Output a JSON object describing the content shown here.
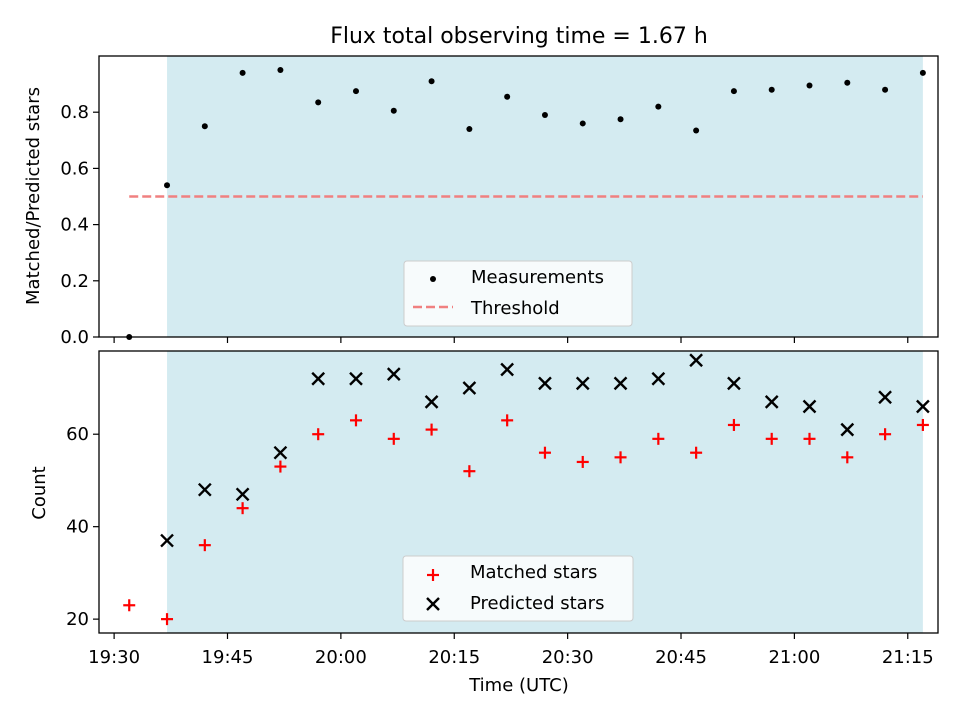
{
  "figure": {
    "title": "Flux total observing time = 1.67 h"
  },
  "chart_data": [
    {
      "type": "scatter",
      "title": "Flux total observing time = 1.67 h",
      "xlabel": "",
      "ylabel": "Matched/Predicted stars",
      "x_scale": "time",
      "xlim": [
        "19:28",
        "21:19"
      ],
      "ylim": [
        0,
        1.0
      ],
      "yticks": [
        0.0,
        0.2,
        0.4,
        0.6,
        0.8
      ],
      "ytick_labels": [
        "0.0",
        "0.2",
        "0.4",
        "0.6",
        "0.8"
      ],
      "xticks": [
        "19:30",
        "19:45",
        "20:00",
        "20:15",
        "20:30",
        "20:45",
        "21:00",
        "21:15"
      ],
      "shaded_region": {
        "x": [
          "19:37",
          "21:17"
        ],
        "color": "#d4ebf1"
      },
      "legend": {
        "position": "bottom-center",
        "entries": [
          "Measurements",
          "Threshold"
        ]
      },
      "series": [
        {
          "name": "Measurements",
          "marker": "dot",
          "color": "#000000",
          "x": [
            "19:32",
            "19:37",
            "19:42",
            "19:47",
            "19:52",
            "19:57",
            "20:02",
            "20:07",
            "20:12",
            "20:17",
            "20:22",
            "20:27",
            "20:32",
            "20:37",
            "20:42",
            "20:47",
            "20:52",
            "20:57",
            "21:02",
            "21:07",
            "21:12",
            "21:17"
          ],
          "y": [
            0.0,
            0.54,
            0.75,
            0.94,
            0.95,
            0.835,
            0.875,
            0.805,
            0.91,
            0.74,
            0.855,
            0.79,
            0.76,
            0.775,
            0.82,
            0.735,
            0.875,
            0.88,
            0.895,
            0.905,
            0.88,
            0.94
          ]
        },
        {
          "name": "Threshold",
          "style": "dashed-line",
          "color": "#f08080",
          "x": [
            "19:32",
            "21:17"
          ],
          "y": [
            0.5,
            0.5
          ]
        }
      ]
    },
    {
      "type": "scatter",
      "title": "",
      "xlabel": "Time (UTC)",
      "ylabel": "Count",
      "x_scale": "time",
      "xlim": [
        "19:28",
        "21:19"
      ],
      "ylim": [
        17,
        78
      ],
      "yticks": [
        20,
        40,
        60
      ],
      "ytick_labels": [
        "20",
        "40",
        "60"
      ],
      "xticks": [
        "19:30",
        "19:45",
        "20:00",
        "20:15",
        "20:30",
        "20:45",
        "21:00",
        "21:15"
      ],
      "xtick_labels": [
        "19:30",
        "19:45",
        "20:00",
        "20:15",
        "20:30",
        "20:45",
        "21:00",
        "21:15"
      ],
      "shaded_region": {
        "x": [
          "19:37",
          "21:17"
        ],
        "color": "#d4ebf1"
      },
      "legend": {
        "position": "bottom-center",
        "entries": [
          "Matched stars",
          "Predicted stars"
        ]
      },
      "series": [
        {
          "name": "Matched stars",
          "marker": "plus",
          "color": "#ff0000",
          "x": [
            "19:32",
            "19:37",
            "19:42",
            "19:47",
            "19:52",
            "19:57",
            "20:02",
            "20:07",
            "20:12",
            "20:17",
            "20:22",
            "20:27",
            "20:32",
            "20:37",
            "20:42",
            "20:47",
            "20:52",
            "20:57",
            "21:02",
            "21:07",
            "21:12",
            "21:17"
          ],
          "y": [
            23,
            20,
            36,
            44,
            53,
            60,
            63,
            59,
            61,
            52,
            63,
            56,
            54,
            55,
            59,
            56,
            62,
            59,
            59,
            55,
            60,
            62
          ]
        },
        {
          "name": "Predicted stars",
          "marker": "x",
          "color": "#000000",
          "x": [
            "19:37",
            "19:42",
            "19:47",
            "19:52",
            "19:57",
            "20:02",
            "20:07",
            "20:12",
            "20:17",
            "20:22",
            "20:27",
            "20:32",
            "20:37",
            "20:42",
            "20:47",
            "20:52",
            "20:57",
            "21:02",
            "21:07",
            "21:12",
            "21:17"
          ],
          "y": [
            37,
            48,
            47,
            56,
            72,
            72,
            73,
            67,
            70,
            74,
            71,
            71,
            71,
            72,
            76,
            71,
            67,
            66,
            61,
            68,
            66
          ]
        }
      ]
    }
  ]
}
